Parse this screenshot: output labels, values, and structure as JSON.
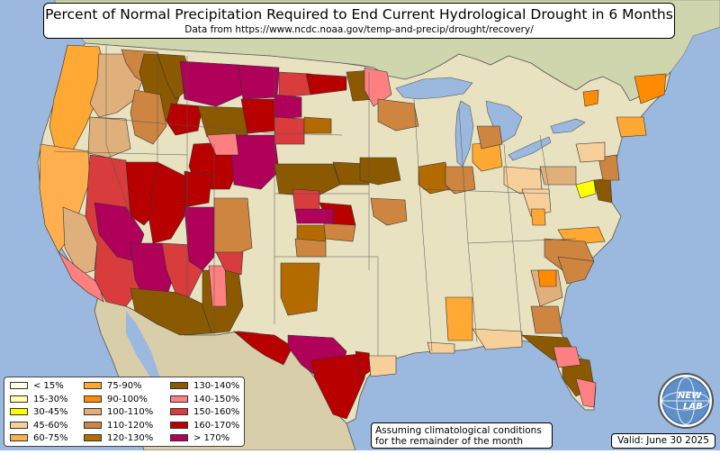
{
  "header": {
    "title": "Percent of Normal Precipitation Required to End Current Hydrological Drought in 6 Months",
    "subtitle": "Data from https://www.ncdc.noaa.gov/temp-and-precip/drought/recovery/"
  },
  "legend": {
    "items": [
      {
        "label": "< 15%",
        "color": "#ffffe6"
      },
      {
        "label": "15-30%",
        "color": "#ffffa8"
      },
      {
        "label": "30-45%",
        "color": "#ffff00"
      },
      {
        "label": "45-60%",
        "color": "#f6cf9a"
      },
      {
        "label": "60-75%",
        "color": "#ffaf4d"
      },
      {
        "label": "75-90%",
        "color": "#ffa833"
      },
      {
        "label": "90-100%",
        "color": "#ff8c00"
      },
      {
        "label": "100-110%",
        "color": "#e0b07c"
      },
      {
        "label": "110-120%",
        "color": "#cd853f"
      },
      {
        "label": "120-130%",
        "color": "#b36b00"
      },
      {
        "label": "130-140%",
        "color": "#8b5a00"
      },
      {
        "label": "140-150%",
        "color": "#ff8080"
      },
      {
        "label": "150-160%",
        "color": "#d93c3c"
      },
      {
        "label": "160-170%",
        "color": "#b80000"
      },
      {
        "label": "> 170%",
        "color": "#b0005a"
      }
    ]
  },
  "note": {
    "line1": "Assuming climatological conditions",
    "line2": "for the remainder of the month"
  },
  "valid": "Valid: June 30 2025",
  "logo": {
    "text_top": "NEW",
    "text_bottom": "LAB",
    "icon": "globe-logo-icon"
  },
  "colors": {
    "ocean": "#9bb8de",
    "land": "#e8e2c0",
    "lake": "#9bb8de",
    "mexico": "#d9ceaa",
    "canada": "#d2d8b0"
  }
}
